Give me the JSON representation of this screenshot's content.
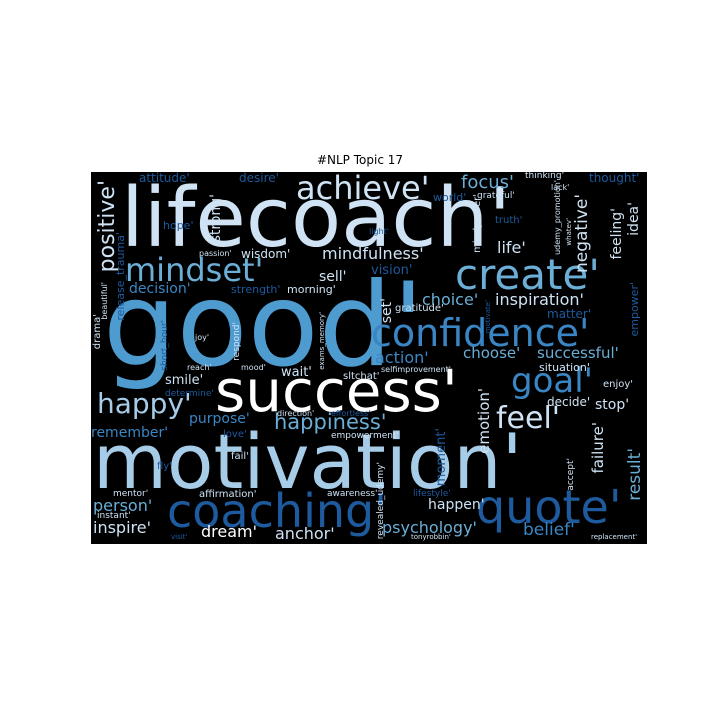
{
  "figure": {
    "title": "#NLP Topic 17"
  },
  "colors": {
    "background": "#000000",
    "lightest": "#cfe3f4",
    "light": "#a6cce8",
    "mid": "#6baed6",
    "blue": "#3a86c4",
    "dark": "#1d5a9e",
    "darkest": "#113a73"
  },
  "words": [
    {
      "id": "lifecoach",
      "text": "lifecoach'"
    },
    {
      "id": "good",
      "text": "good'"
    },
    {
      "id": "motivation",
      "text": "motivation'"
    },
    {
      "id": "success",
      "text": "success'"
    },
    {
      "id": "coaching",
      "text": "coaching'"
    },
    {
      "id": "quote",
      "text": "quote'"
    },
    {
      "id": "create",
      "text": "create'"
    },
    {
      "id": "confidence",
      "text": "confidence'"
    },
    {
      "id": "mindset",
      "text": "mindset'"
    },
    {
      "id": "achieve",
      "text": "achieve'"
    },
    {
      "id": "goal",
      "text": "goal'"
    },
    {
      "id": "happy",
      "text": "happy'"
    },
    {
      "id": "feel",
      "text": "feel'"
    },
    {
      "id": "happiness",
      "text": "happiness'"
    },
    {
      "id": "positive",
      "text": "positive'"
    },
    {
      "id": "mindfulness",
      "text": "mindfulness'"
    },
    {
      "id": "focus",
      "text": "focus'"
    },
    {
      "id": "negative",
      "text": "negative'"
    },
    {
      "id": "life",
      "text": "life'"
    },
    {
      "id": "choice",
      "text": "choice'"
    },
    {
      "id": "inspiration",
      "text": "inspiration'"
    },
    {
      "id": "choose",
      "text": "choose'"
    },
    {
      "id": "successful",
      "text": "successful'"
    },
    {
      "id": "action",
      "text": "action'"
    },
    {
      "id": "emotion",
      "text": "emotion'"
    },
    {
      "id": "result",
      "text": "result'"
    },
    {
      "id": "failure",
      "text": "failure'"
    },
    {
      "id": "person",
      "text": "person'"
    },
    {
      "id": "inspire",
      "text": "inspire'"
    },
    {
      "id": "dream",
      "text": "dream'"
    },
    {
      "id": "anchor",
      "text": "anchor'"
    },
    {
      "id": "psychology",
      "text": "psychology'"
    },
    {
      "id": "belief",
      "text": "belief'"
    },
    {
      "id": "happen",
      "text": "happen'"
    },
    {
      "id": "remember",
      "text": "remember'"
    },
    {
      "id": "decision",
      "text": "decision'"
    },
    {
      "id": "sell",
      "text": "sell'"
    },
    {
      "id": "wisdom",
      "text": "wisdom'"
    },
    {
      "id": "strong",
      "text": "strong'"
    },
    {
      "id": "feeling",
      "text": "feeling'"
    },
    {
      "id": "idea",
      "text": "idea'"
    },
    {
      "id": "smile",
      "text": "smile'"
    },
    {
      "id": "purpose",
      "text": "purpose'"
    },
    {
      "id": "stop",
      "text": "stop'"
    },
    {
      "id": "decide",
      "text": "decide'"
    },
    {
      "id": "wait",
      "text": "wait'"
    },
    {
      "id": "morning",
      "text": "morning'"
    },
    {
      "id": "set",
      "text": "set'"
    },
    {
      "id": "vision",
      "text": "vision'"
    },
    {
      "id": "moment",
      "text": "moment'"
    },
    {
      "id": "attitude",
      "text": "attitude'"
    },
    {
      "id": "desire",
      "text": "desire'"
    },
    {
      "id": "thought",
      "text": "thought'"
    },
    {
      "id": "thinking",
      "text": "thinking'"
    },
    {
      "id": "lack",
      "text": "lack'"
    },
    {
      "id": "world",
      "text": "world'"
    },
    {
      "id": "grateful",
      "text": "grateful'"
    },
    {
      "id": "hope",
      "text": "hope'"
    },
    {
      "id": "passion",
      "text": "passion'"
    },
    {
      "id": "light",
      "text": "light'"
    },
    {
      "id": "truth",
      "text": "truth'"
    },
    {
      "id": "mindpower",
      "text": "mindpower'"
    },
    {
      "id": "udemy_promotion",
      "text": "udemy_promotion'"
    },
    {
      "id": "whatev",
      "text": "whatev'"
    },
    {
      "id": "release_trauma",
      "text": "release_trauma'"
    },
    {
      "id": "beautiful",
      "text": "beautiful'"
    },
    {
      "id": "drama",
      "text": "drama'"
    },
    {
      "id": "strength",
      "text": "strength'"
    },
    {
      "id": "matter",
      "text": "matter'"
    },
    {
      "id": "empower",
      "text": "empower'"
    },
    {
      "id": "gratitude",
      "text": "gratitude'"
    },
    {
      "id": "motivate",
      "text": "motivate'"
    },
    {
      "id": "situation",
      "text": "situation'"
    },
    {
      "id": "joy",
      "text": "joy'"
    },
    {
      "id": "short_hour",
      "text": "short_hour'"
    },
    {
      "id": "respond",
      "text": "respond'"
    },
    {
      "id": "exams_memory",
      "text": "exams_memory'"
    },
    {
      "id": "reach",
      "text": "reach'"
    },
    {
      "id": "mood",
      "text": "mood'"
    },
    {
      "id": "sltchat",
      "text": "sltchat'"
    },
    {
      "id": "selfimprovement",
      "text": "selfimprovement'"
    },
    {
      "id": "determine",
      "text": "determine'"
    },
    {
      "id": "direction",
      "text": "direction'"
    },
    {
      "id": "effortless",
      "text": "effortless'"
    },
    {
      "id": "enjoy",
      "text": "enjoy'"
    },
    {
      "id": "love",
      "text": "love'"
    },
    {
      "id": "empowerment",
      "text": "empowerment'"
    },
    {
      "id": "fly",
      "text": "fly'"
    },
    {
      "id": "fail",
      "text": "fail'"
    },
    {
      "id": "mentor",
      "text": "mentor'"
    },
    {
      "id": "affirmation",
      "text": "affirmation'"
    },
    {
      "id": "awareness",
      "text": "awareness'"
    },
    {
      "id": "lifestyle",
      "text": "lifestyle'"
    },
    {
      "id": "revealed_udemy",
      "text": "revealed_udemy'"
    },
    {
      "id": "accept",
      "text": "accept'"
    },
    {
      "id": "instant",
      "text": "instant'"
    },
    {
      "id": "visit",
      "text": "visit'"
    },
    {
      "id": "tonyrobbin",
      "text": "tonyrobbin'"
    },
    {
      "id": "replacement",
      "text": "replacement'"
    }
  ]
}
